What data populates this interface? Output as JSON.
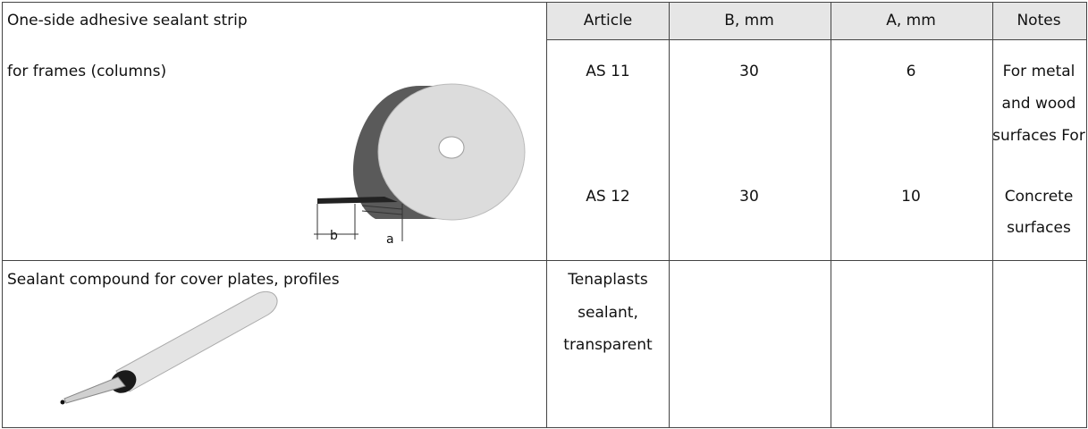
{
  "header": {
    "description": "One-side adhesive sealant strip",
    "columns": [
      "Article",
      "B, mm",
      "A, mm",
      "Notes"
    ]
  },
  "rows": [
    {
      "description": "for frames (columns)",
      "diagram_labels": [
        "b",
        "a"
      ],
      "items": [
        {
          "article": "AS 11",
          "b": 30,
          "a": 6
        },
        {
          "article": "AS 12",
          "b": 30,
          "a": 10
        }
      ],
      "notes": [
        "For metal",
        "and wood",
        "surfaces For",
        "Concrete",
        "surfaces"
      ]
    },
    {
      "description": "Sealant compound for cover plates, profiles",
      "article": [
        "Tenaplasts",
        "sealant,",
        "transparent"
      ]
    }
  ]
}
